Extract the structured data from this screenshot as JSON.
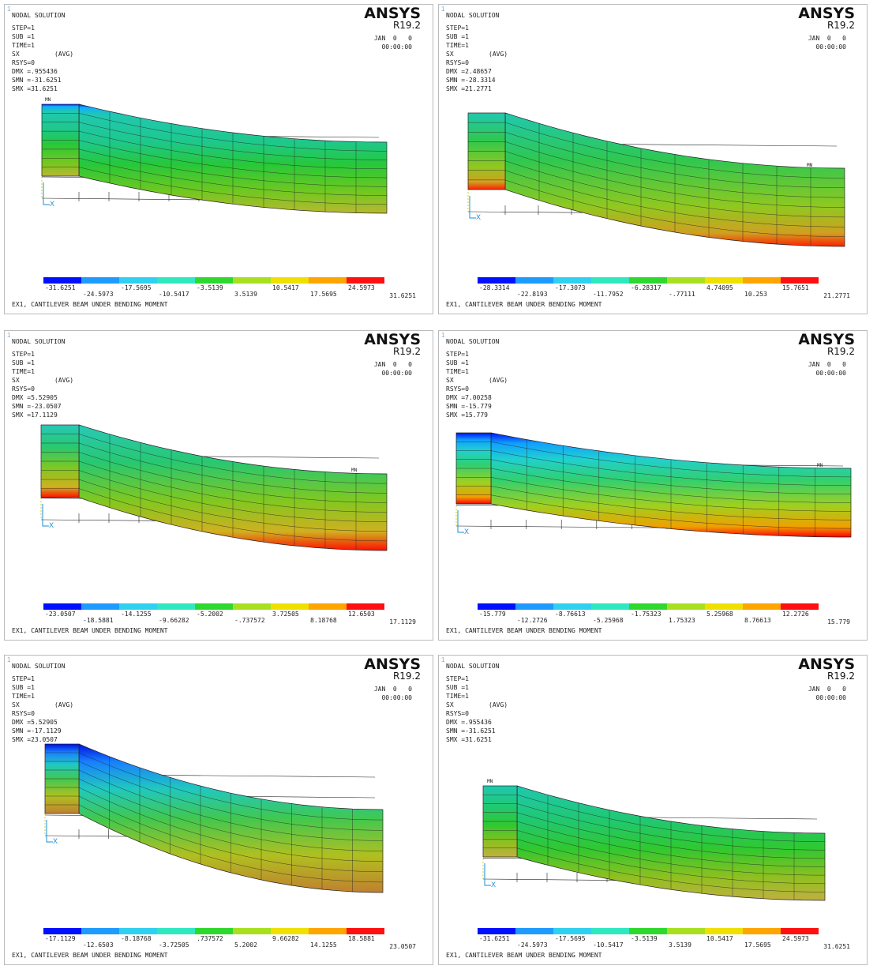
{
  "panels": [
    {
      "window_number": "1",
      "title": "NODAL SOLUTION",
      "step": "STEP=1",
      "sub": "SUB =1",
      "time": "TIME=1",
      "result": "SX",
      "avg": "(AVG)",
      "rsys": "RSYS=0",
      "dmx": "DMX =.955436",
      "smn": "SMN =-31.6251",
      "smx": "SMX =31.6251",
      "brand": "ANSYS",
      "version": "R19.2",
      "date": "JAN  0   0",
      "clock": "00:00:00",
      "mn": "MN",
      "axis": "X",
      "legend": [
        "-31.6251",
        "-24.5973",
        "-17.5695",
        "-10.5417",
        "-3.5139",
        "3.5139",
        "10.5417",
        "17.5695",
        "24.5973",
        "31.6251"
      ],
      "caption": "EX1, CANTILEVER BEAM UNDER BENDING MOMENT"
    },
    {
      "window_number": "1",
      "title": "NODAL SOLUTION",
      "step": "STEP=1",
      "sub": "SUB =1",
      "time": "TIME=1",
      "result": "SX",
      "avg": "(AVG)",
      "rsys": "RSYS=0",
      "dmx": "DMX =2.48657",
      "smn": "SMN =-28.3314",
      "smx": "SMX =21.2771",
      "brand": "ANSYS",
      "version": "R19.2",
      "date": "JAN  0   0",
      "clock": "00:00:00",
      "mn": "MN",
      "axis": "X",
      "legend": [
        "-28.3314",
        "-22.8193",
        "-17.3073",
        "-11.7952",
        "-6.28317",
        "-.77111",
        "4.74095",
        "10.253",
        "15.7651",
        "21.2771"
      ],
      "caption": "EX1, CANTILEVER BEAM UNDER BENDING MOMENT"
    },
    {
      "window_number": "1",
      "title": "NODAL SOLUTION",
      "step": "STEP=1",
      "sub": "SUB =1",
      "time": "TIME=1",
      "result": "SX",
      "avg": "(AVG)",
      "rsys": "RSYS=0",
      "dmx": "DMX =5.52905",
      "smn": "SMN =-23.0507",
      "smx": "SMX =17.1129",
      "brand": "ANSYS",
      "version": "R19.2",
      "date": "JAN  0   0",
      "clock": "00:00:00",
      "mn": "MN",
      "axis": "X",
      "legend": [
        "-23.0507",
        "-18.5881",
        "-14.1255",
        "-9.66282",
        "-5.2002",
        "-.737572",
        "3.72505",
        "8.18768",
        "12.6503",
        "17.1129"
      ],
      "caption": "EX1, CANTILEVER BEAM UNDER BENDING MOMENT"
    },
    {
      "window_number": "1",
      "title": "NODAL SOLUTION",
      "step": "STEP=1",
      "sub": "SUB =1",
      "time": "TIME=1",
      "result": "SX",
      "avg": "(AVG)",
      "rsys": "RSYS=0",
      "dmx": "DMX =7.00258",
      "smn": "SMN =-15.779",
      "smx": "SMX =15.779",
      "brand": "ANSYS",
      "version": "R19.2",
      "date": "JAN  0   0",
      "clock": "00:00:00",
      "mn": "MN",
      "axis": "X",
      "legend": [
        "-15.779",
        "-12.2726",
        "-8.76613",
        "-5.25968",
        "-1.75323",
        "1.75323",
        "5.25968",
        "8.76613",
        "12.2726",
        "15.779"
      ],
      "caption": "EX1, CANTILEVER BEAM UNDER BENDING MOMENT"
    },
    {
      "window_number": "1",
      "title": "NODAL SOLUTION",
      "step": "STEP=1",
      "sub": "SUB =1",
      "time": "TIME=1",
      "result": "SX",
      "avg": "(AVG)",
      "rsys": "RSYS=0",
      "dmx": "DMX =5.52905",
      "smn": "SMN =-17.1129",
      "smx": "SMX =23.0507",
      "brand": "ANSYS",
      "version": "R19.2",
      "date": "JAN  0   0",
      "clock": "00:00:00",
      "axis": "X",
      "legend": [
        "-17.1129",
        "-12.6503",
        "-8.18768",
        "-3.72505",
        ".737572",
        "5.2002",
        "9.66282",
        "14.1255",
        "18.5881",
        "23.0507"
      ],
      "caption": "EX1, CANTILEVER BEAM UNDER BENDING MOMENT"
    },
    {
      "window_number": "1",
      "title": "NODAL SOLUTION",
      "step": "STEP=1",
      "sub": "SUB =1",
      "time": "TIME=1",
      "result": "SX",
      "avg": "(AVG)",
      "rsys": "RSYS=0",
      "dmx": "DMX =.955436",
      "smn": "SMN =-31.6251",
      "smx": "SMX =31.6251",
      "brand": "ANSYS",
      "version": "R19.2",
      "date": "JAN  0   0",
      "clock": "00:00:00",
      "mn": "MN",
      "axis": "X",
      "legend": [
        "-31.6251",
        "-24.5973",
        "-17.5695",
        "-10.5417",
        "-3.5139",
        "3.5139",
        "10.5417",
        "17.5695",
        "24.5973",
        "31.6251"
      ],
      "caption": "EX1, CANTILEVER BEAM UNDER BENDING MOMENT"
    }
  ]
}
